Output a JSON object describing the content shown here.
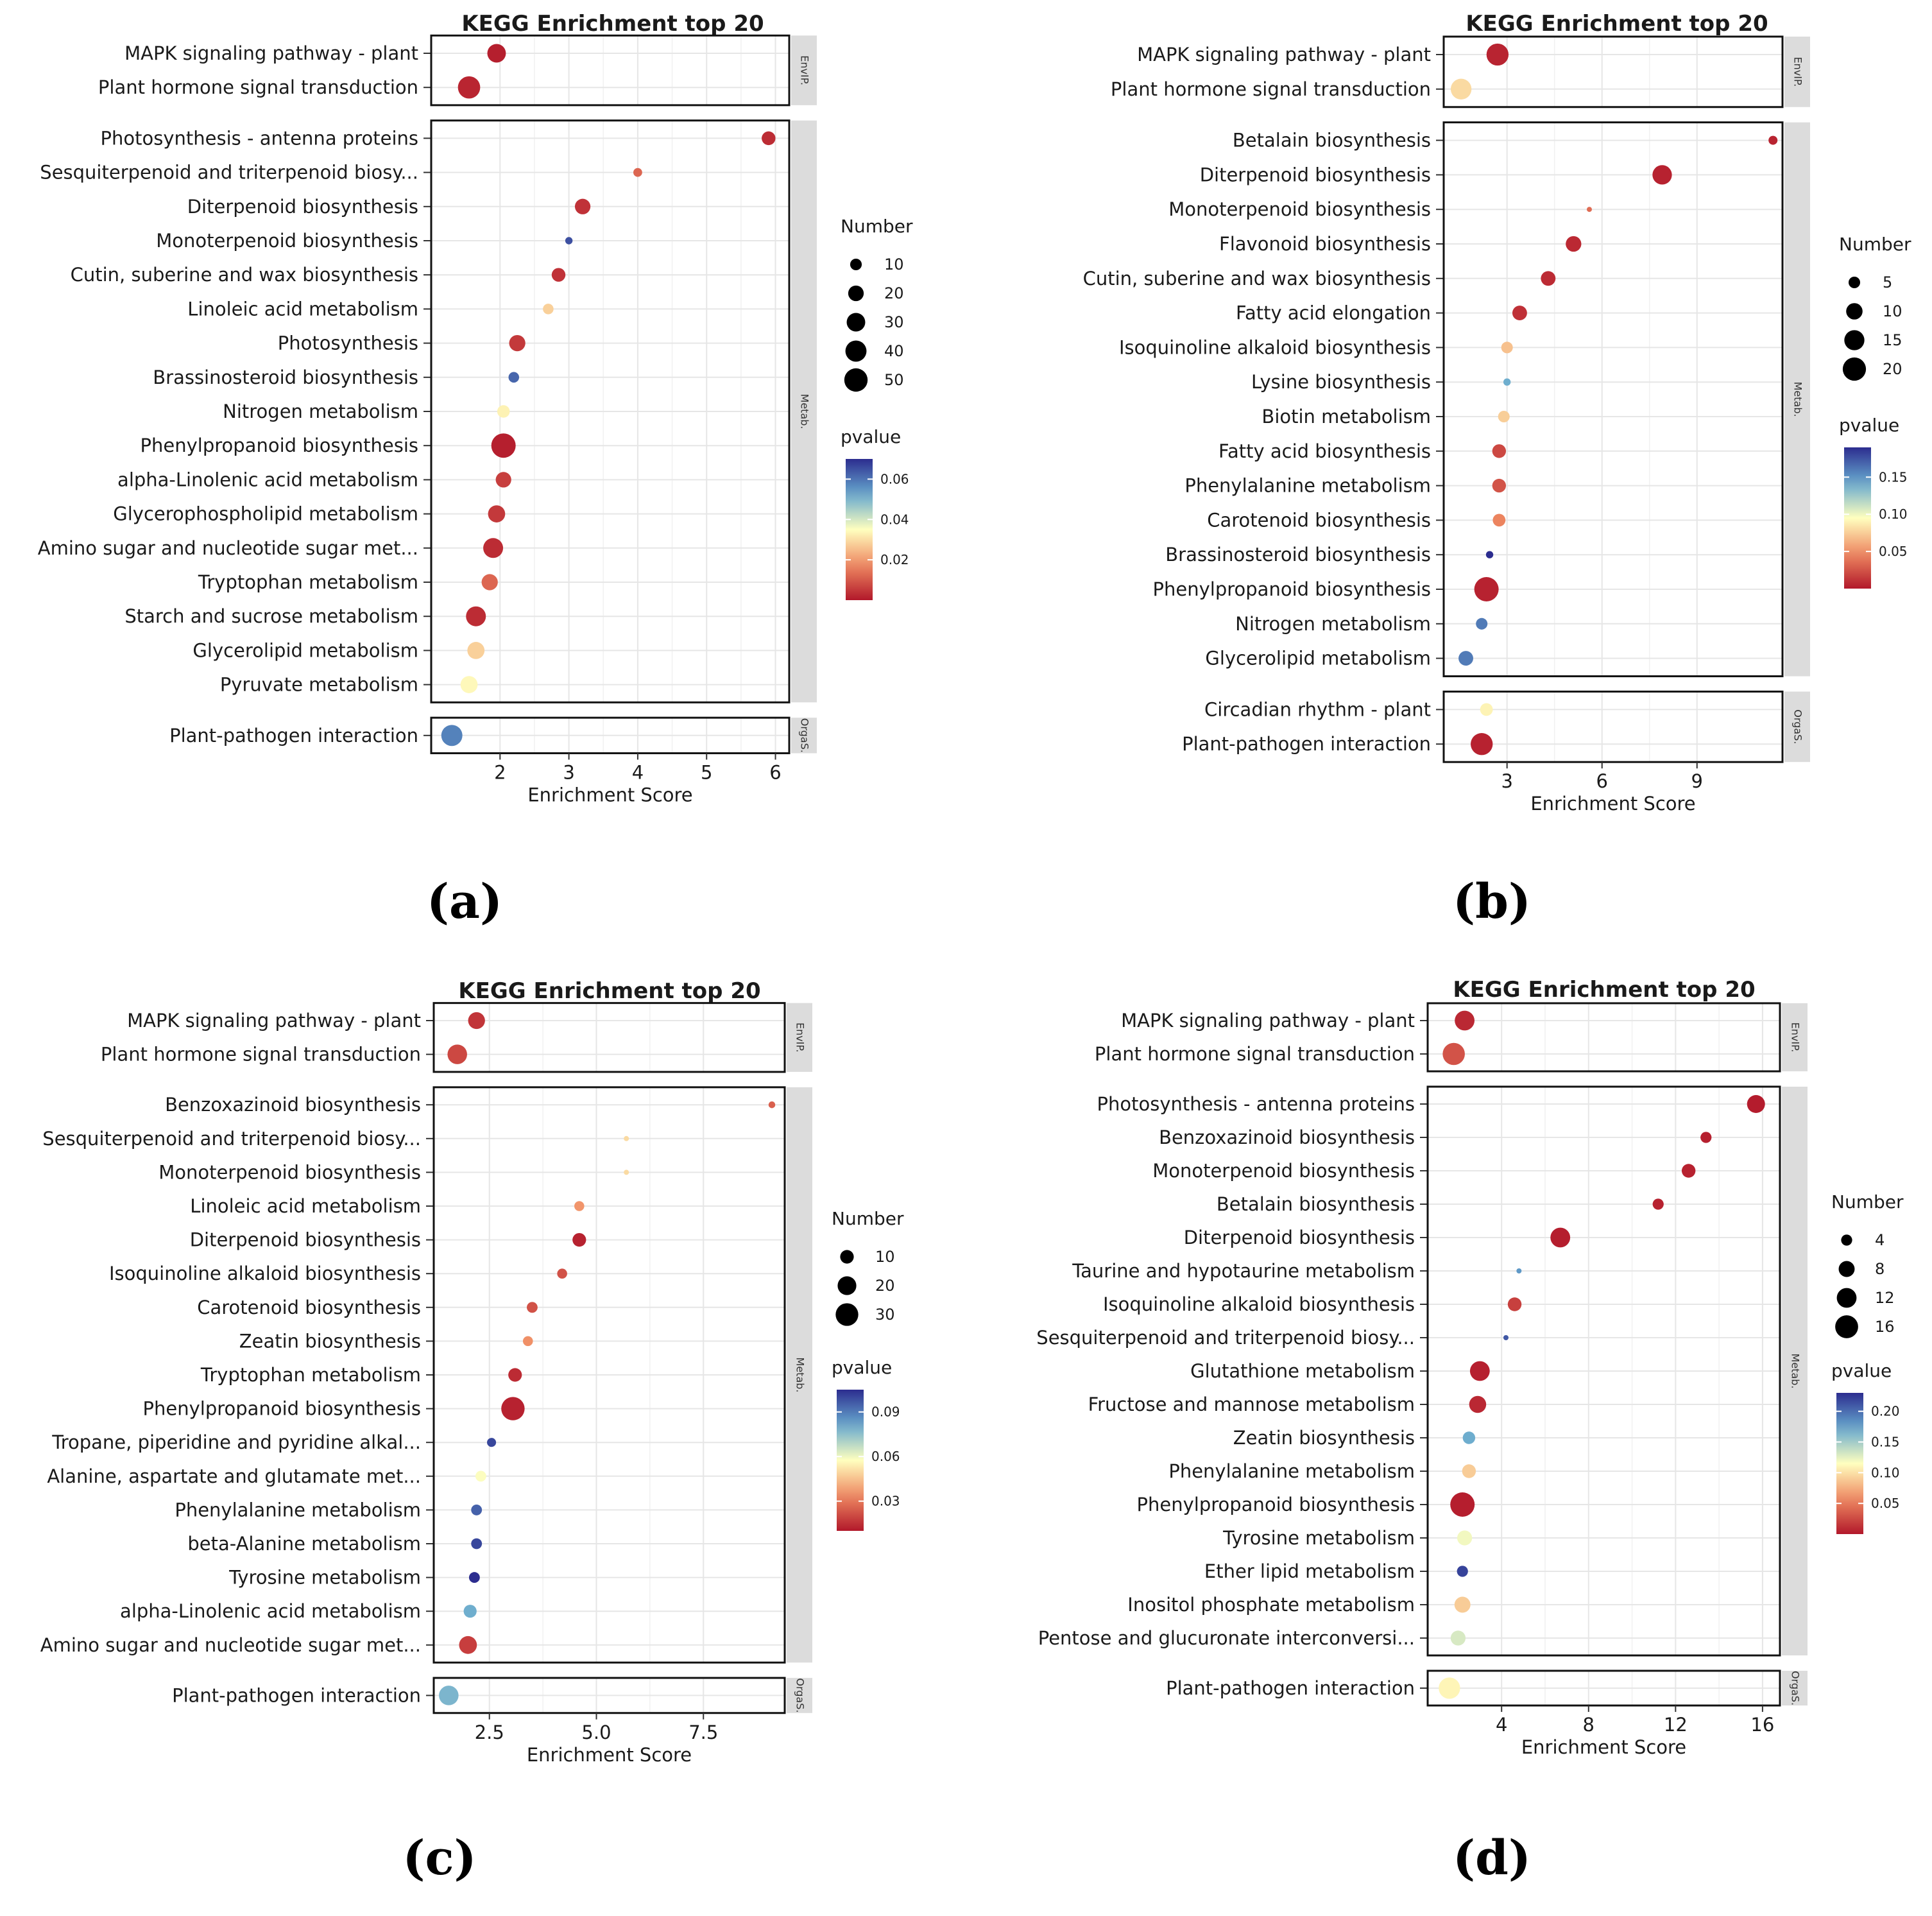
{
  "colors": {
    "low": "#b2182b",
    "lowMid": "#ef8a62",
    "mid": "#ffffbf",
    "highMid": "#67a9cf",
    "high": "#2c2d8f",
    "grid": "#e6e6e6",
    "strip": "#dcdcdc",
    "text": "#1a1a1a"
  },
  "chart_data": [
    {
      "type": "scatter",
      "panel_label": "(a)",
      "title": "KEGG Enrichment top 20",
      "xlabel": "Enrichment Score",
      "xlim": [
        1.0,
        6.2
      ],
      "xticks": [
        2,
        3,
        4,
        5,
        6
      ],
      "xtick_labels": [
        "2",
        "3",
        "4",
        "5",
        "6"
      ],
      "pvalue_range": [
        0.0,
        0.07
      ],
      "legend_number_title": "Number",
      "legend_number_values": [
        10,
        20,
        30,
        40,
        50
      ],
      "size_range": [
        1,
        55
      ],
      "legend_pvalue_title": "pvalue",
      "legend_pvalue_ticks": [
        0.06,
        0.04,
        0.02
      ],
      "legend_pvalue_tick_labels": [
        "0.06",
        "0.04",
        "0.02"
      ],
      "facets": [
        {
          "strip": "EnvIP.",
          "terms": [
            {
              "label": "MAPK signaling pathway - plant",
              "score": 1.95,
              "number": 30,
              "pvalue": 0.001
            },
            {
              "label": "Plant hormone signal transduction",
              "score": 1.55,
              "number": 45,
              "pvalue": 0.002
            }
          ]
        },
        {
          "strip": "Metab.",
          "terms": [
            {
              "label": "Photosynthesis - antenna proteins",
              "score": 5.9,
              "number": 15,
              "pvalue": 0.003
            },
            {
              "label": "Sesquiterpenoid and triterpenoid biosy...",
              "score": 4.0,
              "number": 5,
              "pvalue": 0.012
            },
            {
              "label": "Diterpenoid biosynthesis",
              "score": 3.2,
              "number": 20,
              "pvalue": 0.004
            },
            {
              "label": "Monoterpenoid biosynthesis",
              "score": 3.0,
              "number": 3,
              "pvalue": 0.065
            },
            {
              "label": "Cutin, suberine and wax biosynthesis",
              "score": 2.85,
              "number": 15,
              "pvalue": 0.004
            },
            {
              "label": "Linoleic acid metabolism",
              "score": 2.7,
              "number": 8,
              "pvalue": 0.028
            },
            {
              "label": "Photosynthesis",
              "score": 2.25,
              "number": 22,
              "pvalue": 0.005
            },
            {
              "label": "Brassinosteroid biosynthesis",
              "score": 2.2,
              "number": 8,
              "pvalue": 0.062
            },
            {
              "label": "Nitrogen metabolism",
              "score": 2.05,
              "number": 12,
              "pvalue": 0.033
            },
            {
              "label": "Phenylpropanoid biosynthesis",
              "score": 2.05,
              "number": 55,
              "pvalue": 0.001
            },
            {
              "label": "alpha-Linolenic acid metabolism",
              "score": 2.05,
              "number": 20,
              "pvalue": 0.006
            },
            {
              "label": "Glycerophospholipid metabolism",
              "score": 1.95,
              "number": 25,
              "pvalue": 0.005
            },
            {
              "label": "Amino sugar and nucleotide sugar met...",
              "score": 1.9,
              "number": 35,
              "pvalue": 0.003
            },
            {
              "label": "Tryptophan metabolism",
              "score": 1.85,
              "number": 22,
              "pvalue": 0.012
            },
            {
              "label": "Starch and sucrose metabolism",
              "score": 1.65,
              "number": 35,
              "pvalue": 0.003
            },
            {
              "label": "Glycerolipid metabolism",
              "score": 1.65,
              "number": 25,
              "pvalue": 0.028
            },
            {
              "label": "Pyruvate metabolism",
              "score": 1.55,
              "number": 25,
              "pvalue": 0.034
            }
          ]
        },
        {
          "strip": "OrgaS.",
          "terms": [
            {
              "label": "Plant-pathogen interaction",
              "score": 1.3,
              "number": 40,
              "pvalue": 0.058
            }
          ]
        }
      ]
    },
    {
      "type": "scatter",
      "panel_label": "(b)",
      "title": "KEGG Enrichment top 20",
      "xlabel": "Enrichment Score",
      "xlim": [
        1.0,
        11.7
      ],
      "xticks": [
        3,
        6,
        9
      ],
      "xtick_labels": [
        "3",
        "6",
        "9"
      ],
      "pvalue_range": [
        0.0,
        0.19
      ],
      "legend_number_title": "Number",
      "legend_number_values": [
        5,
        10,
        15,
        20
      ],
      "size_range": [
        1,
        22
      ],
      "legend_pvalue_title": "pvalue",
      "legend_pvalue_ticks": [
        0.15,
        0.1,
        0.05
      ],
      "legend_pvalue_tick_labels": [
        "0.15",
        "0.10",
        "0.05"
      ],
      "facets": [
        {
          "strip": "EnvIP.",
          "terms": [
            {
              "label": "MAPK signaling pathway - plant",
              "score": 2.7,
              "number": 18,
              "pvalue": 0.005
            },
            {
              "label": "Plant hormone signal transduction",
              "score": 1.55,
              "number": 16,
              "pvalue": 0.08
            }
          ]
        },
        {
          "strip": "Metab.",
          "terms": [
            {
              "label": "Betalain biosynthesis",
              "score": 11.4,
              "number": 3,
              "pvalue": 0.005
            },
            {
              "label": "Diterpenoid biosynthesis",
              "score": 7.9,
              "number": 14,
              "pvalue": 0.004
            },
            {
              "label": "Monoterpenoid biosynthesis",
              "score": 5.6,
              "number": 1,
              "pvalue": 0.035
            },
            {
              "label": "Flavonoid biosynthesis",
              "score": 5.1,
              "number": 9,
              "pvalue": 0.007
            },
            {
              "label": "Cutin, suberine and wax biosynthesis",
              "score": 4.3,
              "number": 8,
              "pvalue": 0.008
            },
            {
              "label": "Fatty acid elongation",
              "score": 3.4,
              "number": 8,
              "pvalue": 0.01
            },
            {
              "label": "Isoquinoline alkaloid biosynthesis",
              "score": 3.0,
              "number": 5,
              "pvalue": 0.07
            },
            {
              "label": "Lysine biosynthesis",
              "score": 3.0,
              "number": 2,
              "pvalue": 0.14
            },
            {
              "label": "Biotin metabolism",
              "score": 2.9,
              "number": 5,
              "pvalue": 0.075
            },
            {
              "label": "Fatty acid biosynthesis",
              "score": 2.75,
              "number": 7,
              "pvalue": 0.02
            },
            {
              "label": "Phenylalanine metabolism",
              "score": 2.75,
              "number": 7,
              "pvalue": 0.025
            },
            {
              "label": "Carotenoid biosynthesis",
              "score": 2.75,
              "number": 6,
              "pvalue": 0.045
            },
            {
              "label": "Brassinosteroid biosynthesis",
              "score": 2.45,
              "number": 2,
              "pvalue": 0.19
            },
            {
              "label": "Phenylpropanoid biosynthesis",
              "score": 2.35,
              "number": 22,
              "pvalue": 0.004
            },
            {
              "label": "Nitrogen metabolism",
              "score": 2.2,
              "number": 5,
              "pvalue": 0.16
            },
            {
              "label": "Glycerolipid metabolism",
              "score": 1.7,
              "number": 8,
              "pvalue": 0.16
            }
          ]
        },
        {
          "strip": "OrgaS.",
          "terms": [
            {
              "label": "Circadian rhythm - plant",
              "score": 2.35,
              "number": 6,
              "pvalue": 0.09
            },
            {
              "label": "Plant-pathogen interaction",
              "score": 2.2,
              "number": 18,
              "pvalue": 0.004
            }
          ]
        }
      ]
    },
    {
      "type": "scatter",
      "panel_label": "(c)",
      "title": "KEGG Enrichment top 20",
      "xlabel": "Enrichment Score",
      "xlim": [
        1.2,
        9.4
      ],
      "xticks": [
        2.5,
        5.0,
        7.5
      ],
      "xtick_labels": [
        "2.5",
        "5.0",
        "7.5"
      ],
      "pvalue_range": [
        0.01,
        0.105
      ],
      "legend_number_title": "Number",
      "legend_number_values": [
        10,
        20,
        30
      ],
      "size_range": [
        1,
        35
      ],
      "legend_pvalue_title": "pvalue",
      "legend_pvalue_ticks": [
        0.09,
        0.06,
        0.03
      ],
      "legend_pvalue_tick_labels": [
        "0.09",
        "0.06",
        "0.03"
      ],
      "facets": [
        {
          "strip": "EnvIP.",
          "terms": [
            {
              "label": "MAPK signaling pathway - plant",
              "score": 2.2,
              "number": 16,
              "pvalue": 0.016
            },
            {
              "label": "Plant hormone signal transduction",
              "score": 1.75,
              "number": 22,
              "pvalue": 0.02
            }
          ]
        },
        {
          "strip": "Metab.",
          "terms": [
            {
              "label": "Benzoxazinoid biosynthesis",
              "score": 9.1,
              "number": 2,
              "pvalue": 0.025
            },
            {
              "label": "Sesquiterpenoid and triterpenoid biosy...",
              "score": 5.7,
              "number": 1,
              "pvalue": 0.05
            },
            {
              "label": "Monoterpenoid biosynthesis",
              "score": 5.7,
              "number": 1,
              "pvalue": 0.05
            },
            {
              "label": "Linoleic acid metabolism",
              "score": 4.6,
              "number": 5,
              "pvalue": 0.036
            },
            {
              "label": "Diterpenoid biosynthesis",
              "score": 4.6,
              "number": 10,
              "pvalue": 0.012
            },
            {
              "label": "Isoquinoline alkaloid biosynthesis",
              "score": 4.2,
              "number": 5,
              "pvalue": 0.022
            },
            {
              "label": "Carotenoid biosynthesis",
              "score": 3.5,
              "number": 6,
              "pvalue": 0.022
            },
            {
              "label": "Zeatin biosynthesis",
              "score": 3.4,
              "number": 5,
              "pvalue": 0.035
            },
            {
              "label": "Tryptophan metabolism",
              "score": 3.1,
              "number": 10,
              "pvalue": 0.014
            },
            {
              "label": "Phenylpropanoid biosynthesis",
              "score": 3.05,
              "number": 32,
              "pvalue": 0.012
            },
            {
              "label": "Tropane, piperidine and pyridine alkal...",
              "score": 2.55,
              "number": 4,
              "pvalue": 0.1
            },
            {
              "label": "Alanine, aspartate and glutamate met...",
              "score": 2.3,
              "number": 6,
              "pvalue": 0.058
            },
            {
              "label": "Phenylalanine metabolism",
              "score": 2.2,
              "number": 6,
              "pvalue": 0.095
            },
            {
              "label": "beta-Alanine metabolism",
              "score": 2.2,
              "number": 6,
              "pvalue": 0.1
            },
            {
              "label": "Tyrosine metabolism",
              "score": 2.15,
              "number": 6,
              "pvalue": 0.105
            },
            {
              "label": "alpha-Linolenic acid metabolism",
              "score": 2.05,
              "number": 9,
              "pvalue": 0.08
            },
            {
              "label": "Amino sugar and nucleotide sugar met...",
              "score": 2.0,
              "number": 18,
              "pvalue": 0.018
            }
          ]
        },
        {
          "strip": "OrgaS.",
          "terms": [
            {
              "label": "Plant-pathogen interaction",
              "score": 1.55,
              "number": 22,
              "pvalue": 0.078
            }
          ]
        }
      ]
    },
    {
      "type": "scatter",
      "panel_label": "(d)",
      "title": "KEGG Enrichment top 20",
      "xlabel": "Enrichment Score",
      "xlim": [
        0.6,
        16.8
      ],
      "xticks": [
        4,
        8,
        12,
        16
      ],
      "xtick_labels": [
        "4",
        "8",
        "12",
        "16"
      ],
      "pvalue_range": [
        0.0,
        0.23
      ],
      "legend_number_title": "Number",
      "legend_number_values": [
        4,
        8,
        12,
        16
      ],
      "size_range": [
        1,
        18
      ],
      "legend_pvalue_title": "pvalue",
      "legend_pvalue_ticks": [
        0.2,
        0.15,
        0.1,
        0.05
      ],
      "legend_pvalue_tick_labels": [
        "0.20",
        "0.15",
        "0.10",
        "0.05"
      ],
      "facets": [
        {
          "strip": "EnvIP.",
          "terms": [
            {
              "label": "MAPK signaling pathway - plant",
              "score": 2.3,
              "number": 12,
              "pvalue": 0.008
            },
            {
              "label": "Plant hormone signal transduction",
              "score": 1.8,
              "number": 15,
              "pvalue": 0.03
            }
          ]
        },
        {
          "strip": "Metab.",
          "terms": [
            {
              "label": "Photosynthesis - antenna proteins",
              "score": 15.7,
              "number": 10,
              "pvalue": 0.002
            },
            {
              "label": "Benzoxazinoid biosynthesis",
              "score": 13.4,
              "number": 4,
              "pvalue": 0.004
            },
            {
              "label": "Monoterpenoid biosynthesis",
              "score": 12.6,
              "number": 6,
              "pvalue": 0.005
            },
            {
              "label": "Betalain biosynthesis",
              "score": 11.2,
              "number": 4,
              "pvalue": 0.005
            },
            {
              "label": "Diterpenoid biosynthesis",
              "score": 6.7,
              "number": 12,
              "pvalue": 0.003
            },
            {
              "label": "Taurine and hypotaurine metabolism",
              "score": 4.8,
              "number": 1,
              "pvalue": 0.18
            },
            {
              "label": "Isoquinoline alkaloid biosynthesis",
              "score": 4.6,
              "number": 6,
              "pvalue": 0.02
            },
            {
              "label": "Sesquiterpenoid and triterpenoid biosy...",
              "score": 4.2,
              "number": 1,
              "pvalue": 0.21
            },
            {
              "label": "Glutathione metabolism",
              "score": 3.0,
              "number": 12,
              "pvalue": 0.004
            },
            {
              "label": "Fructose and mannose metabolism",
              "score": 2.9,
              "number": 9,
              "pvalue": 0.008
            },
            {
              "label": "Zeatin biosynthesis",
              "score": 2.5,
              "number": 5,
              "pvalue": 0.17
            },
            {
              "label": "Phenylalanine metabolism",
              "score": 2.5,
              "number": 6,
              "pvalue": 0.09
            },
            {
              "label": "Phenylpropanoid biosynthesis",
              "score": 2.2,
              "number": 18,
              "pvalue": 0.003
            },
            {
              "label": "Tyrosine metabolism",
              "score": 2.3,
              "number": 7,
              "pvalue": 0.12
            },
            {
              "label": "Ether lipid metabolism",
              "score": 2.2,
              "number": 4,
              "pvalue": 0.22
            },
            {
              "label": "Inositol phosphate metabolism",
              "score": 2.2,
              "number": 8,
              "pvalue": 0.09
            },
            {
              "label": "Pentose and glucuronate interconversi...",
              "score": 2.0,
              "number": 7,
              "pvalue": 0.13
            }
          ]
        },
        {
          "strip": "OrgaS.",
          "terms": [
            {
              "label": "Plant-pathogen interaction",
              "score": 1.6,
              "number": 14,
              "pvalue": 0.11
            }
          ]
        }
      ]
    }
  ]
}
